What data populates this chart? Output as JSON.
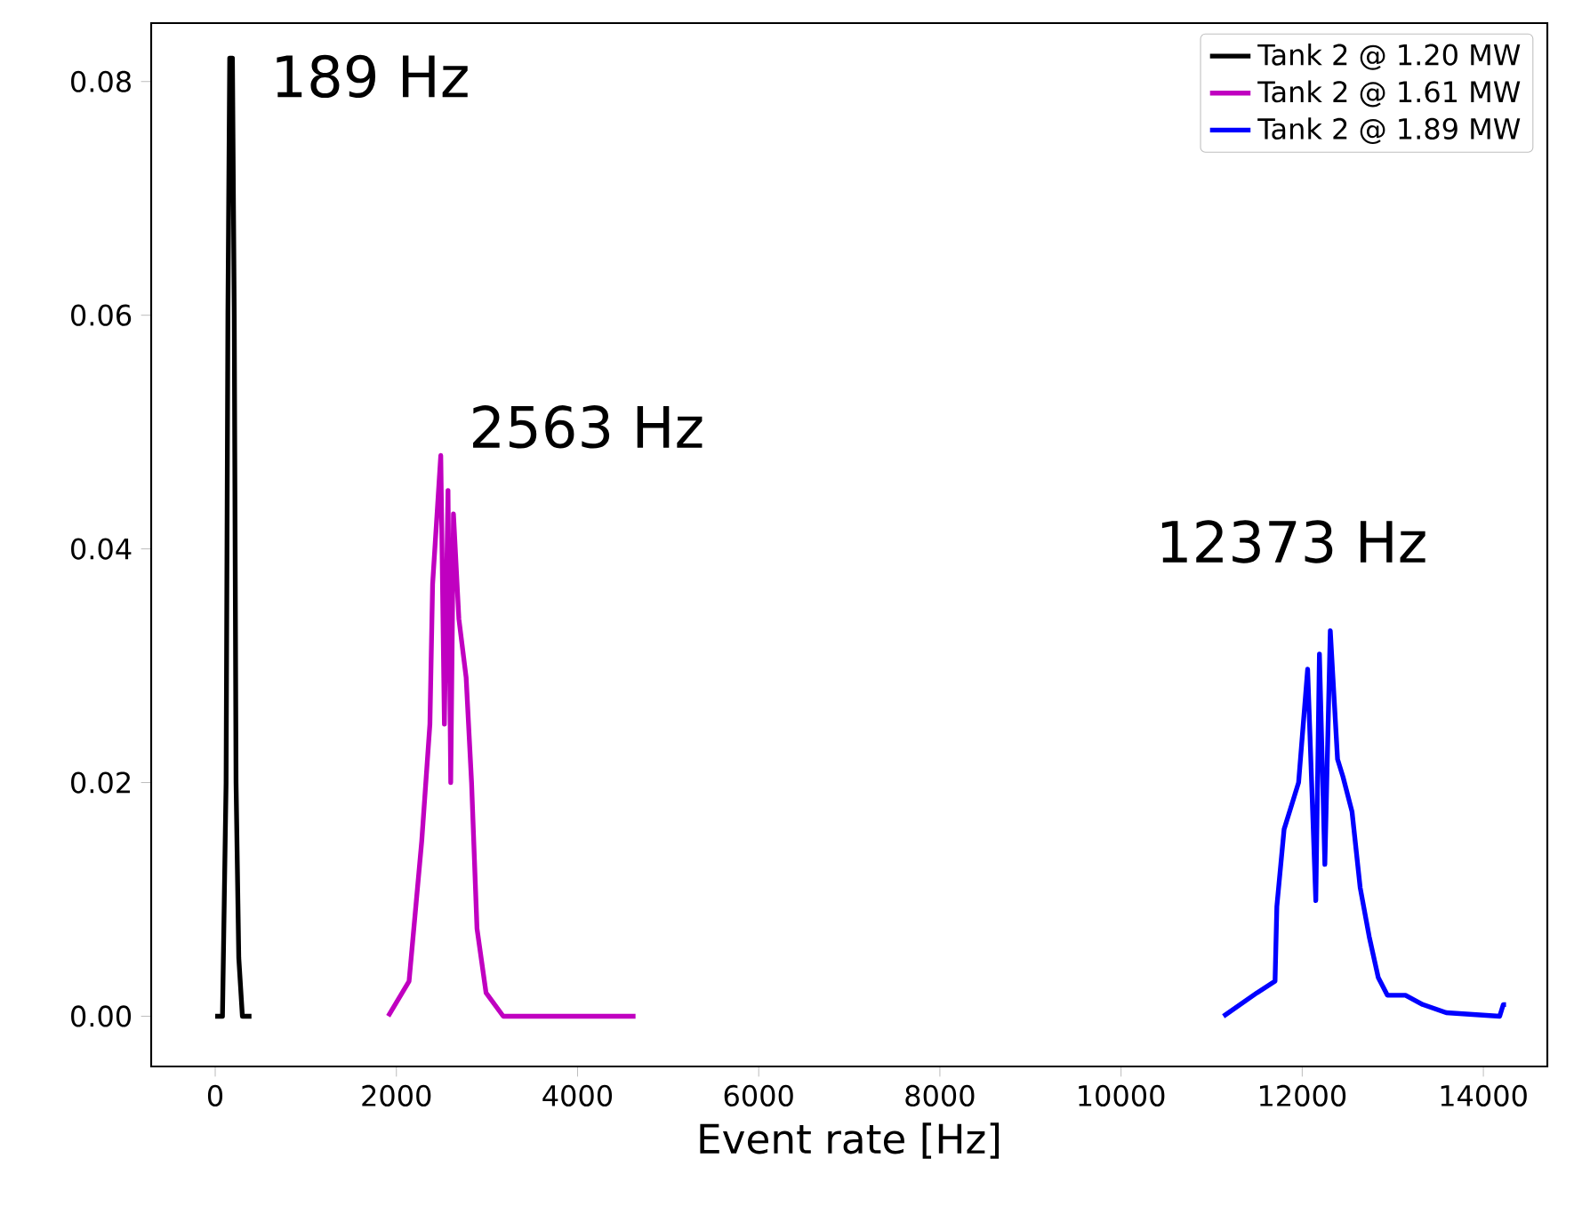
{
  "chart_data": {
    "type": "line",
    "xlabel": "Event rate [Hz]",
    "xlim": [
      -707,
      14706
    ],
    "ylim": [
      -0.0043,
      0.085
    ],
    "xticks": [
      0,
      2000,
      4000,
      6000,
      8000,
      10000,
      12000,
      14000
    ],
    "yticks": [
      {
        "value": 0,
        "label": "0.00"
      },
      {
        "value": 0.02,
        "label": "0.02"
      },
      {
        "value": 0.04,
        "label": "0.04"
      },
      {
        "value": 0.06,
        "label": "0.06"
      },
      {
        "value": 0.08,
        "label": "0.08"
      }
    ],
    "legend": "top right",
    "grid": false,
    "marker": "none",
    "line_style": "solid",
    "series": [
      {
        "name": "Tank 2 @ 1.20 MW",
        "color": "#000000",
        "x": [
          0,
          80,
          100,
          120,
          140,
          160,
          190,
          210,
          230,
          260,
          300,
          400
        ],
        "values": [
          0,
          0,
          0.01,
          0.02,
          0.06,
          0.082,
          0.082,
          0.06,
          0.02,
          0.005,
          0,
          0
        ]
      },
      {
        "name": "Tank 2 @ 1.61 MW",
        "color": "#c000c0",
        "x": [
          1910,
          2140,
          2280,
          2370,
          2400,
          2490,
          2530,
          2570,
          2600,
          2630,
          2690,
          2770,
          2830,
          2890,
          2990,
          3180,
          4640
        ],
        "values": [
          0,
          0.003,
          0.015,
          0.025,
          0.037,
          0.048,
          0.025,
          0.045,
          0.02,
          0.043,
          0.034,
          0.029,
          0.02,
          0.0075,
          0.002,
          0,
          0
        ]
      },
      {
        "name": "Tank 2 @ 1.89 MW",
        "color": "#0000ff",
        "x": [
          11130,
          11500,
          11700,
          11720,
          11800,
          11900,
          11960,
          12060,
          12150,
          12190,
          12250,
          12310,
          12390,
          12450,
          12550,
          12640,
          12740,
          12840,
          12940,
          13140,
          13330,
          13590,
          14180,
          14220,
          14250
        ],
        "values": [
          0,
          0.002,
          0.003,
          0.0094,
          0.016,
          0.0185,
          0.02,
          0.0297,
          0.0099,
          0.031,
          0.013,
          0.033,
          0.022,
          0.0205,
          0.0175,
          0.011,
          0.0068,
          0.0033,
          0.0018,
          0.0018,
          0.001,
          0.0003,
          0,
          0.001,
          0.001
        ]
      }
    ],
    "annotations": [
      "189 Hz",
      "2563 Hz",
      "12373 Hz"
    ]
  }
}
